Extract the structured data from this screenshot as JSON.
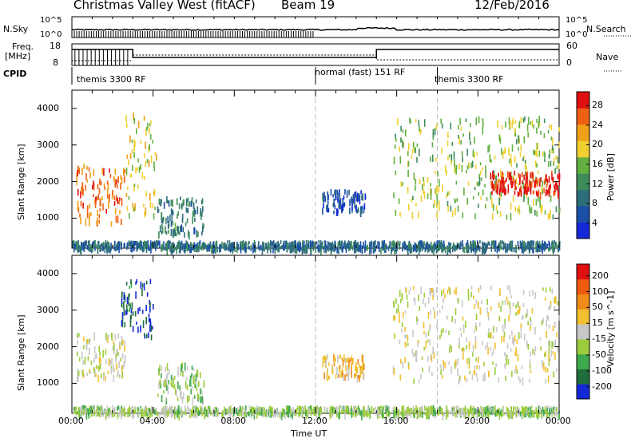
{
  "header": {
    "station": "Christmas Valley West (fitACF)",
    "beam": "Beam 19",
    "date": "12/Feb/2016"
  },
  "strip": {
    "nsky_label": "N.Sky",
    "nsky_ticks": [
      "10^5",
      "10^0"
    ],
    "nsearch_label": "N.Search",
    "nsearch_ticks": [
      "10^5",
      "10^0"
    ],
    "freq_label": "Freq.",
    "freq_unit": "[MHz]",
    "freq_ticks": [
      "18",
      "8"
    ],
    "nave_label": "Nave",
    "nave_ticks": [
      "60",
      "0"
    ],
    "cpid_label": "CPID",
    "cpid_segments": [
      {
        "label": "themis 3300 RF",
        "start_hour": 0
      },
      {
        "label": "normal (fast) 151 RF",
        "start_hour": 12
      },
      {
        "label": "themis 3300 RF",
        "start_hour": 18
      }
    ]
  },
  "chart_data": [
    {
      "type": "heatmap",
      "panel": "power",
      "ylabel": "Slant Range [km]",
      "yticks": [
        "4000",
        "3000",
        "2000",
        "1000"
      ],
      "ylim": [
        180,
        4500
      ],
      "colorbar_label": "Power [dB]",
      "colorbar_ticks": [
        "28",
        "24",
        "20",
        "16",
        "12",
        "8",
        "4"
      ],
      "colorbar_range": [
        0,
        30
      ],
      "colors": [
        "#1428d8",
        "#1b4fa8",
        "#2e6d7a",
        "#3e8c5a",
        "#62b040",
        "#f0d030",
        "#f0a018",
        "#ee6014",
        "#e01010"
      ],
      "regions": [
        {
          "x": [
            0.2,
            2.6
          ],
          "y": [
            900,
            2500
          ],
          "value": 24
        },
        {
          "x": [
            2.6,
            4.2
          ],
          "y": [
            1100,
            3900
          ],
          "value": 18
        },
        {
          "x": [
            4.2,
            6.5
          ],
          "y": [
            600,
            1600
          ],
          "value": 10
        },
        {
          "x": [
            12.3,
            14.5
          ],
          "y": [
            1200,
            1800
          ],
          "value": 5
        },
        {
          "x": [
            15.8,
            24.0
          ],
          "y": [
            1100,
            3800
          ],
          "value": 16
        },
        {
          "x": [
            20.5,
            24.0
          ],
          "y": [
            1700,
            2300
          ],
          "value": 28
        },
        {
          "x": [
            0.0,
            24.0
          ],
          "y": [
            200,
            400
          ],
          "value": 8
        }
      ]
    },
    {
      "type": "heatmap",
      "panel": "velocity",
      "ylabel": "Slant Range [km]",
      "yticks": [
        "4000",
        "3000",
        "2000",
        "1000"
      ],
      "ylim": [
        180,
        4500
      ],
      "colorbar_label": "Velocity [m s^-1]",
      "colorbar_ticks": [
        "200",
        "100",
        "50",
        "15",
        "-15",
        "-50",
        "-100",
        "-200"
      ],
      "colorbar_range": [
        -250,
        250
      ],
      "colors": [
        "#1428d8",
        "#1f6e3c",
        "#3ea84c",
        "#9ccc3c",
        "#c8c8c8",
        "#f0c030",
        "#f08a18",
        "#f05a10",
        "#e01010"
      ],
      "regions": [
        {
          "x": [
            0.2,
            2.6
          ],
          "y": [
            1200,
            2400
          ],
          "value": 0
        },
        {
          "x": [
            2.4,
            4.0
          ],
          "y": [
            2300,
            3900
          ],
          "value": -200
        },
        {
          "x": [
            4.2,
            6.5
          ],
          "y": [
            600,
            1600
          ],
          "value": -50
        },
        {
          "x": [
            12.3,
            14.5
          ],
          "y": [
            1200,
            1800
          ],
          "value": 60
        },
        {
          "x": [
            15.8,
            24.0
          ],
          "y": [
            1100,
            3700
          ],
          "value": 0
        },
        {
          "x": [
            0.0,
            24.0
          ],
          "y": [
            200,
            400
          ],
          "value": -50
        }
      ]
    }
  ],
  "xaxis": {
    "label": "Time UT",
    "ticks": [
      "00:00",
      "04:00",
      "08:00",
      "12:00",
      "16:00",
      "20:00",
      "00:00"
    ]
  }
}
